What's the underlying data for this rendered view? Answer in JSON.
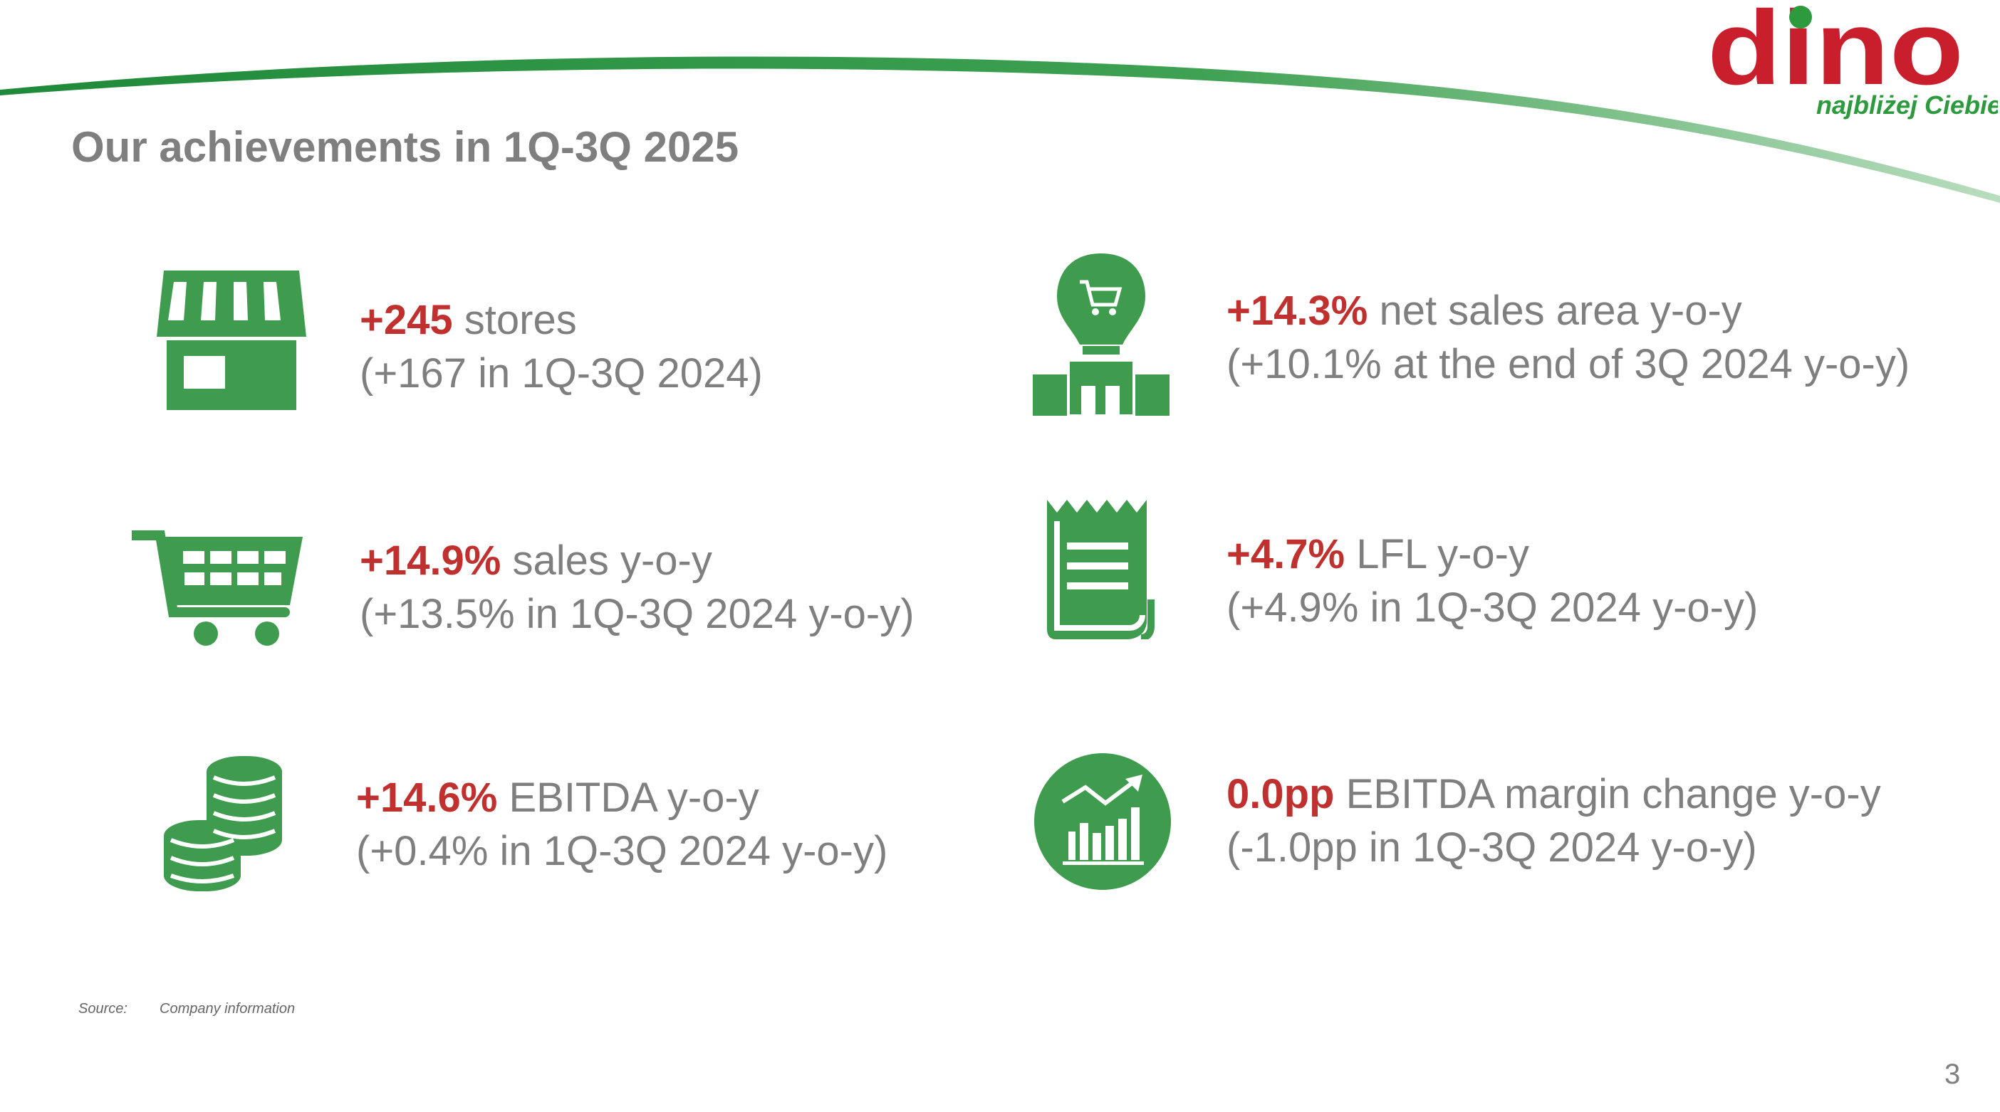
{
  "header": {
    "title": "Our achievements in 1Q-3Q 2025",
    "logo": {
      "wordmark": "dino",
      "tagline": "najbliżej Ciebie"
    }
  },
  "colors": {
    "accent_red": "#c0302e",
    "icon_green": "#3f9c4f",
    "text_gray": "#7f7f7f"
  },
  "achievements": [
    {
      "icon": "store-icon",
      "highlight": "+245",
      "label": " stores",
      "detail": "(+167 in 1Q-3Q 2024)"
    },
    {
      "icon": "shopping-cart-icon",
      "highlight": "+14.9%",
      "label": " sales y-o-y",
      "detail": "(+13.5% in 1Q-3Q 2024 y-o-y)"
    },
    {
      "icon": "coins-icon",
      "highlight": "+14.6%",
      "label": " EBITDA y-o-y",
      "detail": "(+0.4% in 1Q-3Q 2024 y-o-y)"
    },
    {
      "icon": "store-sales-area-icon",
      "highlight": "+14.3%",
      "label": " net sales area y-o-y",
      "detail": "(+10.1% at the end of 3Q 2024 y-o-y)"
    },
    {
      "icon": "receipt-icon",
      "highlight": "+4.7%",
      "label": " LFL y-o-y",
      "detail": "(+4.9% in 1Q-3Q 2024 y-o-y)"
    },
    {
      "icon": "growth-chart-icon",
      "highlight": "0.0pp",
      "label": " EBITDA margin change y-o-y",
      "detail": "(-1.0pp in 1Q-3Q 2024 y-o-y)"
    }
  ],
  "footer": {
    "source_label": "Source:",
    "source_text": "Company information",
    "page_number": "3"
  }
}
